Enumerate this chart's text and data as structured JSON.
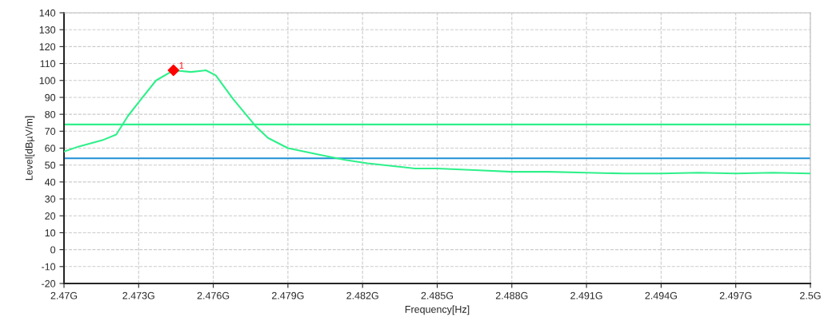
{
  "chart_data": {
    "type": "line",
    "xlabel": "Frequency[Hz]",
    "ylabel": "Level[dBµV/m]",
    "xlim": [
      2.47,
      2.5
    ],
    "ylim": [
      -20,
      140
    ],
    "xticks": [
      {
        "value": 2.47,
        "label": "2.47G"
      },
      {
        "value": 2.473,
        "label": "2.473G"
      },
      {
        "value": 2.476,
        "label": "2.476G"
      },
      {
        "value": 2.479,
        "label": "2.479G"
      },
      {
        "value": 2.482,
        "label": "2.482G"
      },
      {
        "value": 2.485,
        "label": "2.485G"
      },
      {
        "value": 2.488,
        "label": "2.488G"
      },
      {
        "value": 2.491,
        "label": "2.491G"
      },
      {
        "value": 2.494,
        "label": "2.494G"
      },
      {
        "value": 2.497,
        "label": "2.497G"
      },
      {
        "value": 2.5,
        "label": "2.5G"
      }
    ],
    "yticks": [
      -20,
      -10,
      0,
      10,
      20,
      30,
      40,
      50,
      60,
      70,
      80,
      90,
      100,
      110,
      120,
      130,
      140
    ],
    "grid": true,
    "legend": false,
    "marker": "none",
    "line_style": "solid",
    "series": [
      {
        "color": "#2ef08a",
        "x": [
          2.47,
          2.4706,
          2.4716,
          2.4721,
          2.47257,
          2.47305,
          2.4737,
          2.4744,
          2.4751,
          2.4757,
          2.4761,
          2.4768,
          2.4777,
          2.4782,
          2.479,
          2.4803,
          2.4813,
          2.4822,
          2.4841,
          2.485,
          2.4865,
          2.488,
          2.4895,
          2.491,
          2.4925,
          2.494,
          2.4955,
          2.497,
          2.4985,
          2.5
        ],
        "values": [
          58,
          61,
          65,
          68,
          79,
          88,
          100,
          106,
          105,
          106,
          103,
          89,
          73,
          66,
          60,
          56,
          53,
          51,
          48,
          48,
          47,
          46,
          46,
          45.5,
          45,
          45,
          45.5,
          45,
          45.5,
          45
        ]
      },
      {
        "type": "scatter",
        "color": "#ff0000",
        "marker": "diamond",
        "x": [
          2.4744
        ],
        "values": [
          106
        ]
      }
    ],
    "annotations": [
      {
        "text": "1",
        "x": 2.4744,
        "y": 106
      }
    ],
    "ref_lines": [
      {
        "axis": "y",
        "value": 74,
        "color": "#2ef08a",
        "line_style": "solid"
      },
      {
        "axis": "y",
        "value": 54,
        "color": "#1f8fd6",
        "line_style": "solid"
      }
    ]
  }
}
